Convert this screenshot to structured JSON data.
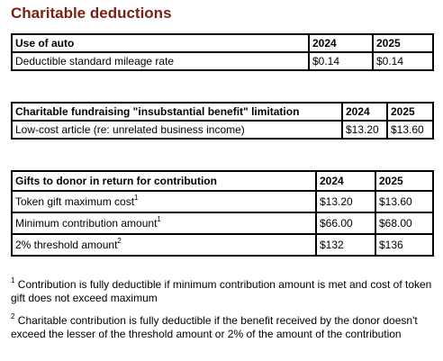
{
  "title": "Charitable deductions",
  "table_auto": {
    "header": [
      "Use of auto",
      "2024",
      "2025"
    ],
    "rows": [
      [
        "Deductible standard mileage rate",
        "$0.14",
        "$0.14"
      ]
    ]
  },
  "table_fundraising": {
    "header": [
      "Charitable fundraising \"insubstantial benefit\" limitation",
      "2024",
      "2025"
    ],
    "rows": [
      [
        "Low-cost article (re: unrelated business income)",
        "$13.20",
        "$13.60"
      ]
    ]
  },
  "table_gifts": {
    "header": [
      "Gifts to donor in return for contribution",
      "2024",
      "2025"
    ],
    "rows": [
      {
        "label": "Token gift maximum cost",
        "note": "1",
        "v2024": "$13.20",
        "v2025": "$13.60"
      },
      {
        "label": "Minimum contribution amount",
        "note": "1",
        "v2024": "$66.00",
        "v2025": "$68.00"
      },
      {
        "label": "2% threshold amount",
        "note": "2",
        "v2024": "$132",
        "v2025": "$136"
      }
    ]
  },
  "footnotes": [
    {
      "marker": "1",
      "text": "Contribution is fully deductible if minimum contribution amount is met and cost of token gift does not exceed maximum"
    },
    {
      "marker": "2",
      "text": "Charitable contribution is fully deductible if the benefit received by the donor doesn't exceed the lesser of the threshold amount or 2% of the amount of the contribution"
    }
  ]
}
